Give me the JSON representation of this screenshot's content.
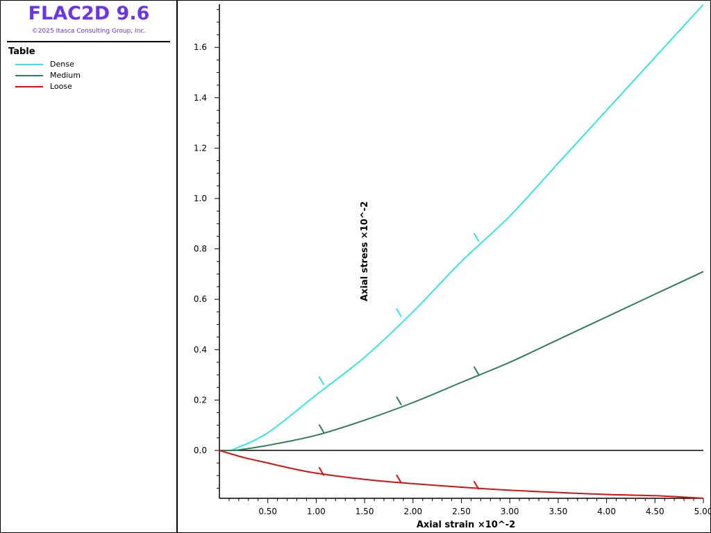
{
  "app": {
    "title": "FLAC2D 9.6",
    "copyright": "©2025 Itasca Consulting Group, Inc."
  },
  "legend": {
    "title": "Table",
    "items": [
      {
        "label": "Dense",
        "color": "#33e6e6"
      },
      {
        "label": "Medium",
        "color": "#2e7d55"
      },
      {
        "label": "Loose",
        "color": "#d91010"
      }
    ]
  },
  "chart_data": {
    "type": "line",
    "xlabel": "Axial strain ×10^-2",
    "ylabel": "Axial stress ×10^-2",
    "xlim": [
      0,
      5.0
    ],
    "ylim": [
      -0.19,
      1.77
    ],
    "x_ticks": [
      0.5,
      1.0,
      1.5,
      2.0,
      2.5,
      3.0,
      3.5,
      4.0,
      4.5,
      5.0
    ],
    "x_tick_labels": [
      "0.50",
      "1.00",
      "1.50",
      "2.00",
      "2.50",
      "3.00",
      "3.50",
      "4.00",
      "4.50",
      "5.00"
    ],
    "y_ticks": [
      0.0,
      0.2,
      0.4,
      0.6,
      0.8,
      1.0,
      1.2,
      1.4,
      1.6
    ],
    "y_tick_labels": [
      "0.0",
      "0.2",
      "0.4",
      "0.6",
      "0.8",
      "1.0",
      "1.2",
      "1.4",
      "1.6"
    ],
    "zero_line": true,
    "grid": false,
    "series": [
      {
        "name": "Dense",
        "color": "#33e6e6",
        "points": [
          [
            0,
            0
          ],
          [
            0.1,
            0
          ],
          [
            0.15,
            0.005
          ],
          [
            0.5,
            0.07
          ],
          [
            1.0,
            0.22
          ],
          [
            1.5,
            0.37
          ],
          [
            2.0,
            0.55
          ],
          [
            2.5,
            0.75
          ],
          [
            3.0,
            0.93
          ],
          [
            3.5,
            1.14
          ],
          [
            4.0,
            1.35
          ],
          [
            4.5,
            1.56
          ],
          [
            5.0,
            1.77
          ]
        ],
        "markers": [
          [
            1.08,
            0.26
          ],
          [
            1.88,
            0.53
          ],
          [
            2.68,
            0.83
          ]
        ]
      },
      {
        "name": "Medium",
        "color": "#2e7d55",
        "points": [
          [
            0,
            0
          ],
          [
            0.1,
            0
          ],
          [
            0.2,
            0.002
          ],
          [
            0.5,
            0.02
          ],
          [
            1.0,
            0.06
          ],
          [
            1.5,
            0.12
          ],
          [
            2.0,
            0.19
          ],
          [
            2.5,
            0.27
          ],
          [
            3.0,
            0.35
          ],
          [
            3.5,
            0.44
          ],
          [
            4.0,
            0.53
          ],
          [
            4.5,
            0.62
          ],
          [
            5.0,
            0.71
          ]
        ],
        "markers": [
          [
            1.08,
            0.07
          ],
          [
            1.88,
            0.18
          ],
          [
            2.68,
            0.3
          ]
        ]
      },
      {
        "name": "Loose",
        "color": "#d91010",
        "points": [
          [
            0,
            0
          ],
          [
            0.25,
            -0.028
          ],
          [
            0.5,
            -0.05
          ],
          [
            0.75,
            -0.072
          ],
          [
            1.0,
            -0.09
          ],
          [
            1.5,
            -0.115
          ],
          [
            2.0,
            -0.132
          ],
          [
            2.5,
            -0.146
          ],
          [
            3.0,
            -0.158
          ],
          [
            3.5,
            -0.167
          ],
          [
            4.0,
            -0.175
          ],
          [
            4.5,
            -0.18
          ],
          [
            5.0,
            -0.19
          ]
        ],
        "markers": [
          [
            1.08,
            -0.1
          ],
          [
            1.88,
            -0.13
          ],
          [
            2.68,
            -0.155
          ]
        ]
      }
    ]
  }
}
